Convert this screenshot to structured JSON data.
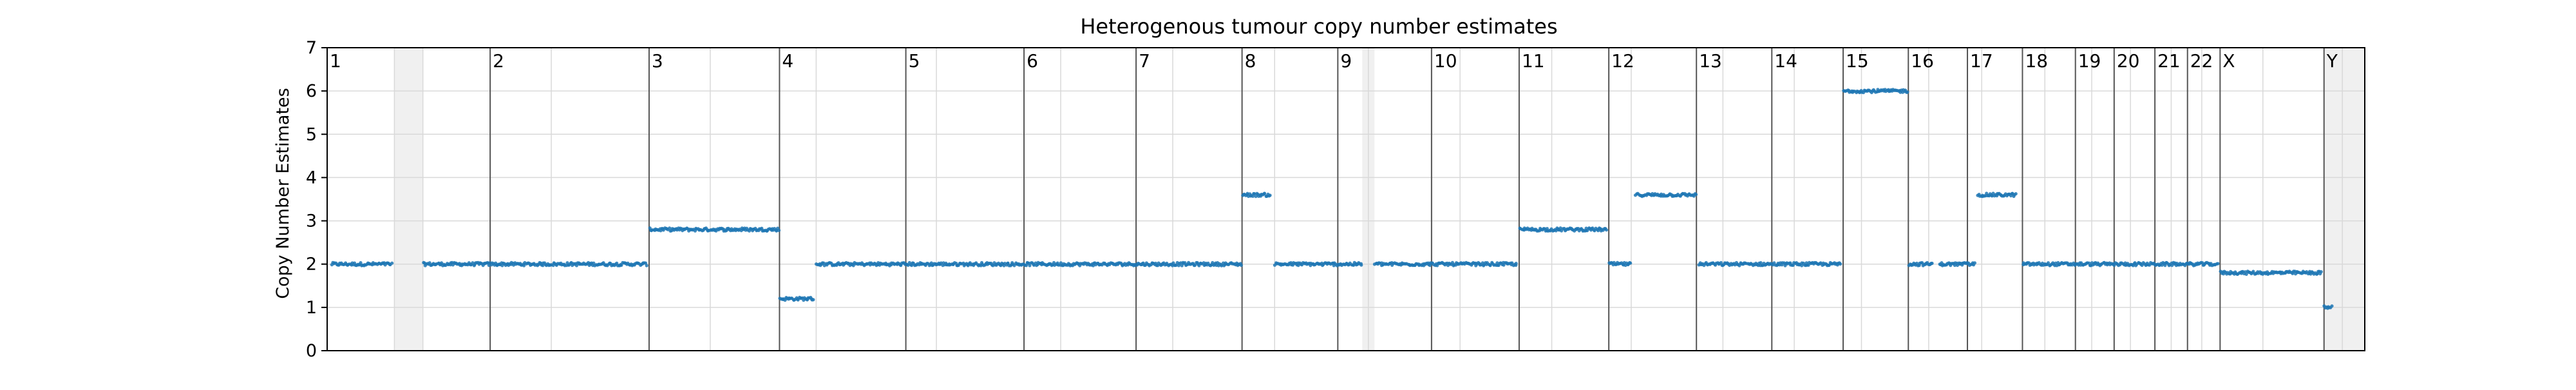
{
  "chart_data": {
    "type": "scatter",
    "title": "Heterogenous tumour copy number estimates",
    "xlabel": "",
    "ylabel": "Copy Number Estimates",
    "ylim": [
      0,
      7
    ],
    "yticks": [
      0,
      1,
      2,
      3,
      4,
      5,
      6,
      7
    ],
    "grid": true,
    "point_color": "#1f77b4",
    "chromosome_line_color": "#555555",
    "gap_shade_color": "#f0f0f0",
    "x_units": "relative genome position (0-100)",
    "xlim": [
      0,
      100
    ],
    "chromosomes": [
      {
        "label": "1",
        "start": 0.0,
        "end": 8.0
      },
      {
        "label": "2",
        "start": 8.0,
        "end": 15.8
      },
      {
        "label": "3",
        "start": 15.8,
        "end": 22.2
      },
      {
        "label": "4",
        "start": 22.2,
        "end": 28.4
      },
      {
        "label": "5",
        "start": 28.4,
        "end": 34.2
      },
      {
        "label": "6",
        "start": 34.2,
        "end": 39.7
      },
      {
        "label": "7",
        "start": 39.7,
        "end": 44.9
      },
      {
        "label": "8",
        "start": 44.9,
        "end": 49.6
      },
      {
        "label": "9",
        "start": 49.6,
        "end": 54.2
      },
      {
        "label": "10",
        "start": 54.2,
        "end": 58.5
      },
      {
        "label": "11",
        "start": 58.5,
        "end": 62.9
      },
      {
        "label": "12",
        "start": 62.9,
        "end": 67.2
      },
      {
        "label": "13",
        "start": 67.2,
        "end": 70.9
      },
      {
        "label": "14",
        "start": 70.9,
        "end": 74.4
      },
      {
        "label": "15",
        "start": 74.4,
        "end": 77.6
      },
      {
        "label": "16",
        "start": 77.6,
        "end": 80.5
      },
      {
        "label": "17",
        "start": 80.5,
        "end": 83.2
      },
      {
        "label": "18",
        "start": 83.2,
        "end": 85.8
      },
      {
        "label": "19",
        "start": 85.8,
        "end": 87.7
      },
      {
        "label": "20",
        "start": 87.7,
        "end": 89.7
      },
      {
        "label": "21",
        "start": 89.7,
        "end": 91.3
      },
      {
        "label": "22",
        "start": 91.3,
        "end": 92.9
      },
      {
        "label": "X",
        "start": 92.9,
        "end": 98.0
      },
      {
        "label": "Y",
        "start": 98.0,
        "end": 100.0
      }
    ],
    "shaded_regions": [
      {
        "start": 3.3,
        "end": 4.7
      },
      {
        "start": 50.8,
        "end": 51.4
      },
      {
        "start": 98.0,
        "end": 100.0
      }
    ],
    "minor_gridlines_x": [
      3.3,
      4.7,
      11.0,
      18.8,
      24.0,
      29.9,
      36.0,
      41.5,
      46.5,
      51.1,
      55.6,
      60.1,
      64.0,
      68.5,
      72.0,
      75.3,
      78.6,
      81.2,
      84.3,
      86.6,
      88.5,
      90.5,
      92.0,
      95.0,
      98.9
    ],
    "segments": [
      {
        "start": 0.2,
        "end": 3.2,
        "cn": 2.0
      },
      {
        "start": 4.7,
        "end": 15.7,
        "cn": 2.0
      },
      {
        "start": 15.8,
        "end": 22.2,
        "cn": 2.8
      },
      {
        "start": 22.2,
        "end": 23.9,
        "cn": 1.2
      },
      {
        "start": 24.0,
        "end": 44.9,
        "cn": 2.0
      },
      {
        "start": 44.9,
        "end": 46.3,
        "cn": 3.6
      },
      {
        "start": 46.5,
        "end": 50.8,
        "cn": 2.0
      },
      {
        "start": 51.4,
        "end": 58.4,
        "cn": 2.0
      },
      {
        "start": 58.5,
        "end": 62.8,
        "cn": 2.8
      },
      {
        "start": 62.9,
        "end": 64.0,
        "cn": 2.0
      },
      {
        "start": 64.2,
        "end": 67.2,
        "cn": 3.6
      },
      {
        "start": 67.3,
        "end": 74.3,
        "cn": 2.0
      },
      {
        "start": 74.4,
        "end": 77.6,
        "cn": 6.0
      },
      {
        "start": 77.6,
        "end": 78.8,
        "cn": 2.0
      },
      {
        "start": 79.1,
        "end": 80.9,
        "cn": 2.0
      },
      {
        "start": 81.0,
        "end": 82.9,
        "cn": 3.6
      },
      {
        "start": 83.2,
        "end": 92.8,
        "cn": 2.0
      },
      {
        "start": 92.9,
        "end": 97.9,
        "cn": 1.8
      },
      {
        "start": 98.0,
        "end": 98.4,
        "cn": 1.0
      }
    ]
  }
}
